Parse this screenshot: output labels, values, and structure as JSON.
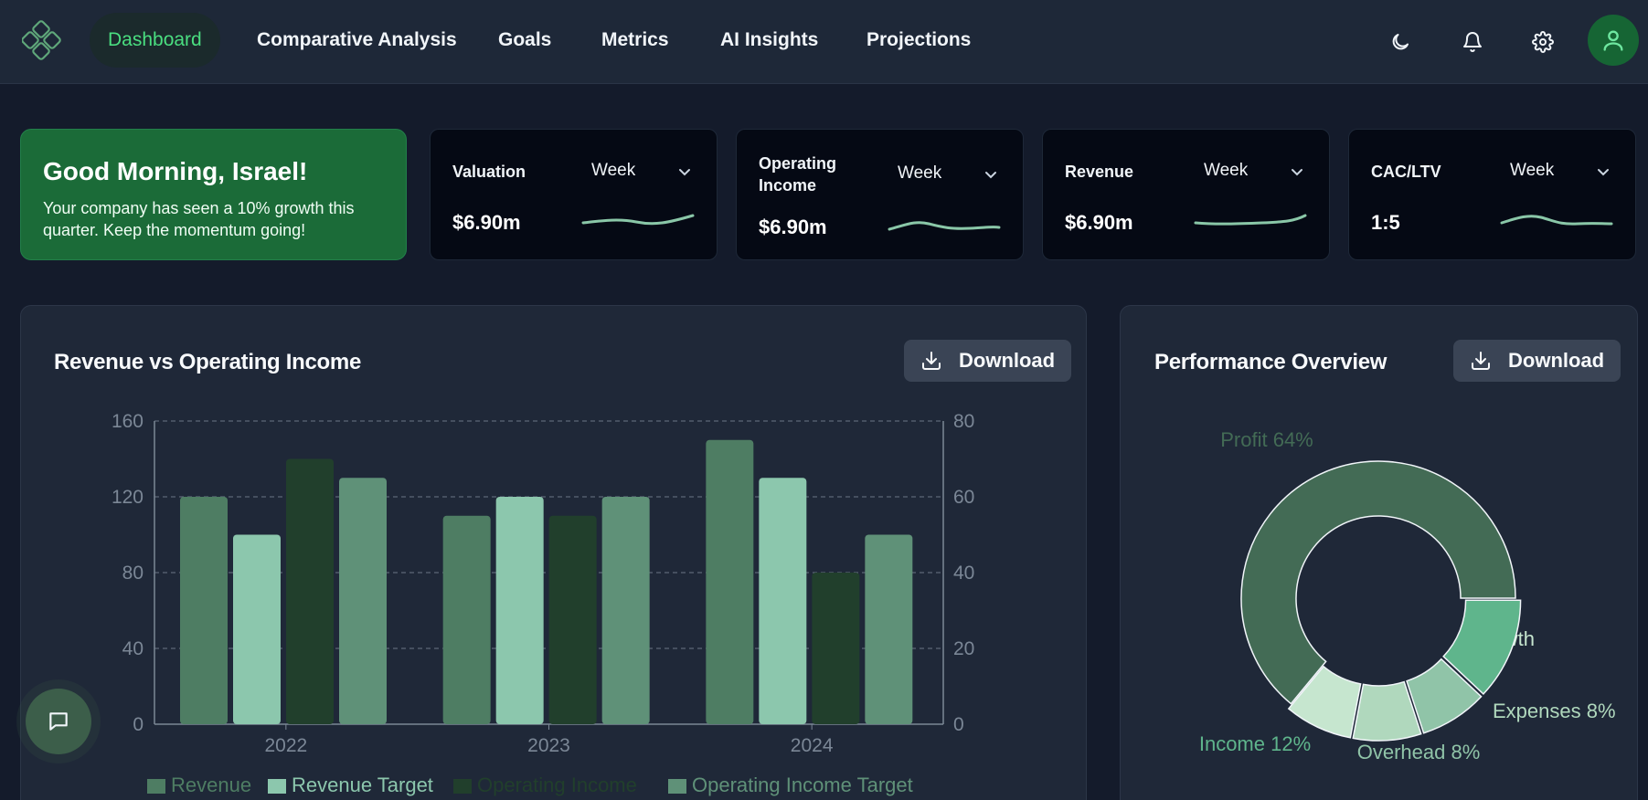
{
  "nav": {
    "items": [
      {
        "label": "Dashboard",
        "active": true
      },
      {
        "label": "Comparative Analysis"
      },
      {
        "label": "Goals"
      },
      {
        "label": "Metrics"
      },
      {
        "label": "AI Insights"
      },
      {
        "label": "Projections"
      }
    ],
    "icons": [
      "moon-icon",
      "bell-icon",
      "gear-icon",
      "user-icon"
    ]
  },
  "greeting": {
    "title": "Good Morning, Israel!",
    "message": "Your company has seen a 10% growth this quarter. Keep the momentum going!"
  },
  "kpis": [
    {
      "title": "Valuation",
      "period": "Week",
      "value": "$6.90m"
    },
    {
      "title": "Operating Income",
      "period": "Week",
      "value": "$6.90m"
    },
    {
      "title": "Revenue",
      "period": "Week",
      "value": "$6.90m"
    },
    {
      "title": "CAC/LTV",
      "period": "Week",
      "value": "1:5"
    }
  ],
  "bar_panel": {
    "title": "Revenue vs Operating Income",
    "download_label": "Download"
  },
  "pie_panel": {
    "title": "Performance Overview",
    "download_label": "Download"
  },
  "colors": {
    "accent": "#4ade80",
    "revenue": "#4e7d63",
    "revenue_target": "#8cc7ad",
    "operating_income": "#213f2c",
    "operating_income_target": "#5f9178"
  },
  "chart_data": [
    {
      "type": "bar",
      "title": "Revenue vs Operating Income",
      "categories": [
        "2022",
        "2023",
        "2024"
      ],
      "series": [
        {
          "name": "Revenue",
          "axis": "left",
          "values": [
            120,
            110,
            150
          ]
        },
        {
          "name": "Revenue Target",
          "axis": "left",
          "values": [
            100,
            120,
            130
          ]
        },
        {
          "name": "Operating Income",
          "axis": "right",
          "values": [
            70,
            55,
            40
          ]
        },
        {
          "name": "Operating Income Target",
          "axis": "right",
          "values": [
            65,
            60,
            50
          ]
        }
      ],
      "ylim": [
        0,
        160
      ],
      "y2lim": [
        0,
        80
      ],
      "yticks": [
        "0",
        "40",
        "80",
        "120",
        "160"
      ],
      "y2ticks": [
        "0",
        "20",
        "40",
        "60",
        "80"
      ],
      "grid": true,
      "legend": "bottom"
    },
    {
      "type": "pie",
      "title": "Performance Overview",
      "donut": true,
      "slices": [
        {
          "label": "Profit 64%",
          "value": 64,
          "color": "#436b55"
        },
        {
          "label": "Growth",
          "value": 8,
          "color": "#c6e6cf"
        },
        {
          "label": "Expenses 8%",
          "value": 8,
          "color": "#b0d8bd"
        },
        {
          "label": "Overhead 8%",
          "value": 8,
          "color": "#90c4a8"
        },
        {
          "label": "Income 12%",
          "value": 12,
          "color": "#5fb58c"
        }
      ]
    }
  ]
}
